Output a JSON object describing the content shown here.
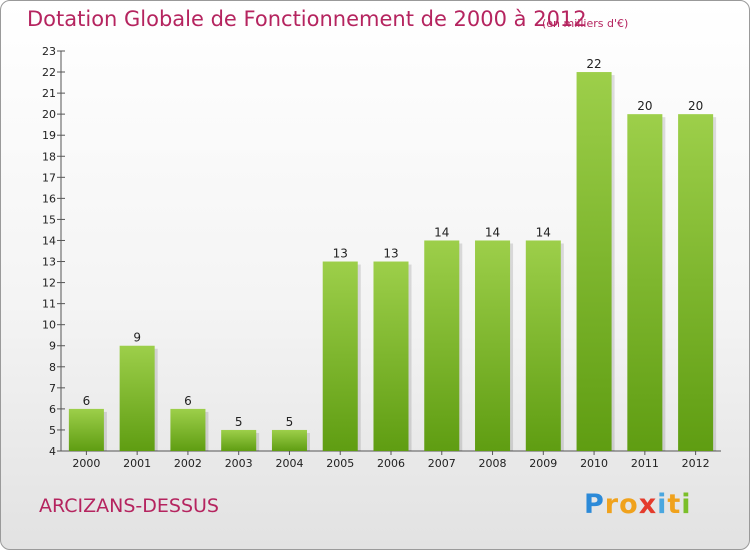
{
  "chart_data": {
    "type": "bar",
    "title": "Dotation Globale de Fonctionnement de 2000 à 2012",
    "subtitle": "(en milliers d'€)",
    "categories": [
      "2000",
      "2001",
      "2002",
      "2003",
      "2004",
      "2005",
      "2006",
      "2007",
      "2008",
      "2009",
      "2010",
      "2011",
      "2012"
    ],
    "values": [
      6,
      9,
      6,
      5,
      5,
      13,
      13,
      14,
      14,
      14,
      22,
      20,
      20
    ],
    "ylim": [
      4,
      23
    ],
    "yticks": [
      4,
      5,
      6,
      7,
      8,
      9,
      10,
      11,
      12,
      13,
      14,
      15,
      16,
      17,
      18,
      19,
      20,
      21,
      22,
      23
    ],
    "xlabel": "",
    "ylabel": "",
    "grid": false,
    "bar_color_top": "#9dcf4a",
    "bar_color_bottom": "#5f9d12"
  },
  "commune": "ARCIZANS-DESSUS",
  "logo": {
    "letters": [
      "P",
      "r",
      "o",
      "x",
      "i",
      "t",
      "i"
    ],
    "colors": [
      "#2c8ad8",
      "#f0a21c",
      "#f0a21c",
      "#e43b2c",
      "#4aa7e0",
      "#f0a21c",
      "#7bbf2a"
    ]
  }
}
